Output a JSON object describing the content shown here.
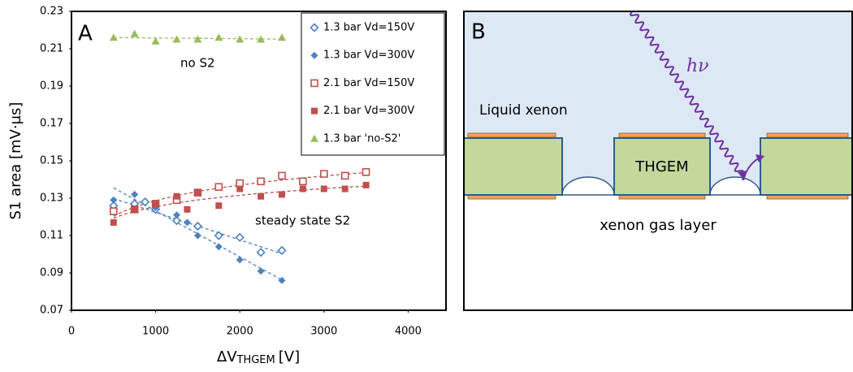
{
  "chart_data": {
    "type": "scatter",
    "panel_label": "A",
    "x_label": {
      "main": "ΔV",
      "sub": "THGEM",
      "unit": "[V]"
    },
    "y_label": "S1 area [mV·µs]",
    "xlim": [
      0,
      4450
    ],
    "xticks": [
      0,
      1000,
      2000,
      3000,
      4000
    ],
    "ylim": [
      0.07,
      0.23
    ],
    "yticks": [
      0.07,
      0.09,
      0.11,
      0.13,
      0.15,
      0.17,
      0.19,
      0.21,
      0.23
    ],
    "grid": false,
    "legend": "upper right",
    "annotations": [
      "no S2",
      "steady state S2"
    ],
    "series": [
      {
        "name": "1.3 bar Vd=150V",
        "color": "#4f81bd",
        "marker": "diamond",
        "filled": false,
        "trendline": "linear",
        "x": [
          500,
          750,
          875,
          1000,
          1250,
          1500,
          1750,
          2000,
          2250,
          2500
        ],
        "values": [
          0.126,
          0.127,
          0.128,
          0.124,
          0.118,
          0.115,
          0.11,
          0.109,
          0.101,
          0.102
        ]
      },
      {
        "name": "1.3 bar Vd=300V",
        "color": "#4f81bd",
        "marker": "diamond",
        "filled": true,
        "trendline": "linear",
        "x": [
          500,
          750,
          1000,
          1250,
          1375,
          1500,
          1750,
          2000,
          2250,
          2500
        ],
        "values": [
          0.129,
          0.132,
          0.125,
          0.121,
          0.117,
          0.11,
          0.104,
          0.097,
          0.091,
          0.086
        ]
      },
      {
        "name": "2.1 bar Vd=150V",
        "color": "#c0504d",
        "marker": "square",
        "filled": false,
        "trendline": "log",
        "x": [
          500,
          750,
          1000,
          1250,
          1500,
          1750,
          2000,
          2250,
          2500,
          2750,
          3000,
          3250,
          3500
        ],
        "values": [
          0.123,
          0.124,
          0.127,
          0.129,
          0.133,
          0.136,
          0.138,
          0.139,
          0.142,
          0.139,
          0.143,
          0.142,
          0.144
        ]
      },
      {
        "name": "2.1 bar Vd=300V",
        "color": "#c0504d",
        "marker": "square",
        "filled": true,
        "trendline": "log",
        "x": [
          500,
          750,
          1000,
          1250,
          1375,
          1500,
          1750,
          2000,
          2250,
          2500,
          2750,
          3000,
          3250,
          3500
        ],
        "values": [
          0.117,
          0.124,
          0.127,
          0.131,
          0.124,
          0.133,
          0.126,
          0.135,
          0.131,
          0.132,
          0.135,
          0.135,
          0.135,
          0.137
        ]
      },
      {
        "name": "1.3 bar 'no-S2'",
        "color": "#9bbb59",
        "marker": "triangle",
        "filled": true,
        "trendline": "linear",
        "x": [
          500,
          750,
          1000,
          1250,
          1500,
          1750,
          2000,
          2250,
          2500
        ],
        "values": [
          0.216,
          0.218,
          0.214,
          0.215,
          0.215,
          0.216,
          0.215,
          0.215,
          0.216
        ]
      }
    ]
  },
  "diagram": {
    "panel_label": "B",
    "liquid": "Liquid xenon",
    "thgem": "THGEM",
    "gas": "xenon gas layer",
    "photon": "hν"
  }
}
